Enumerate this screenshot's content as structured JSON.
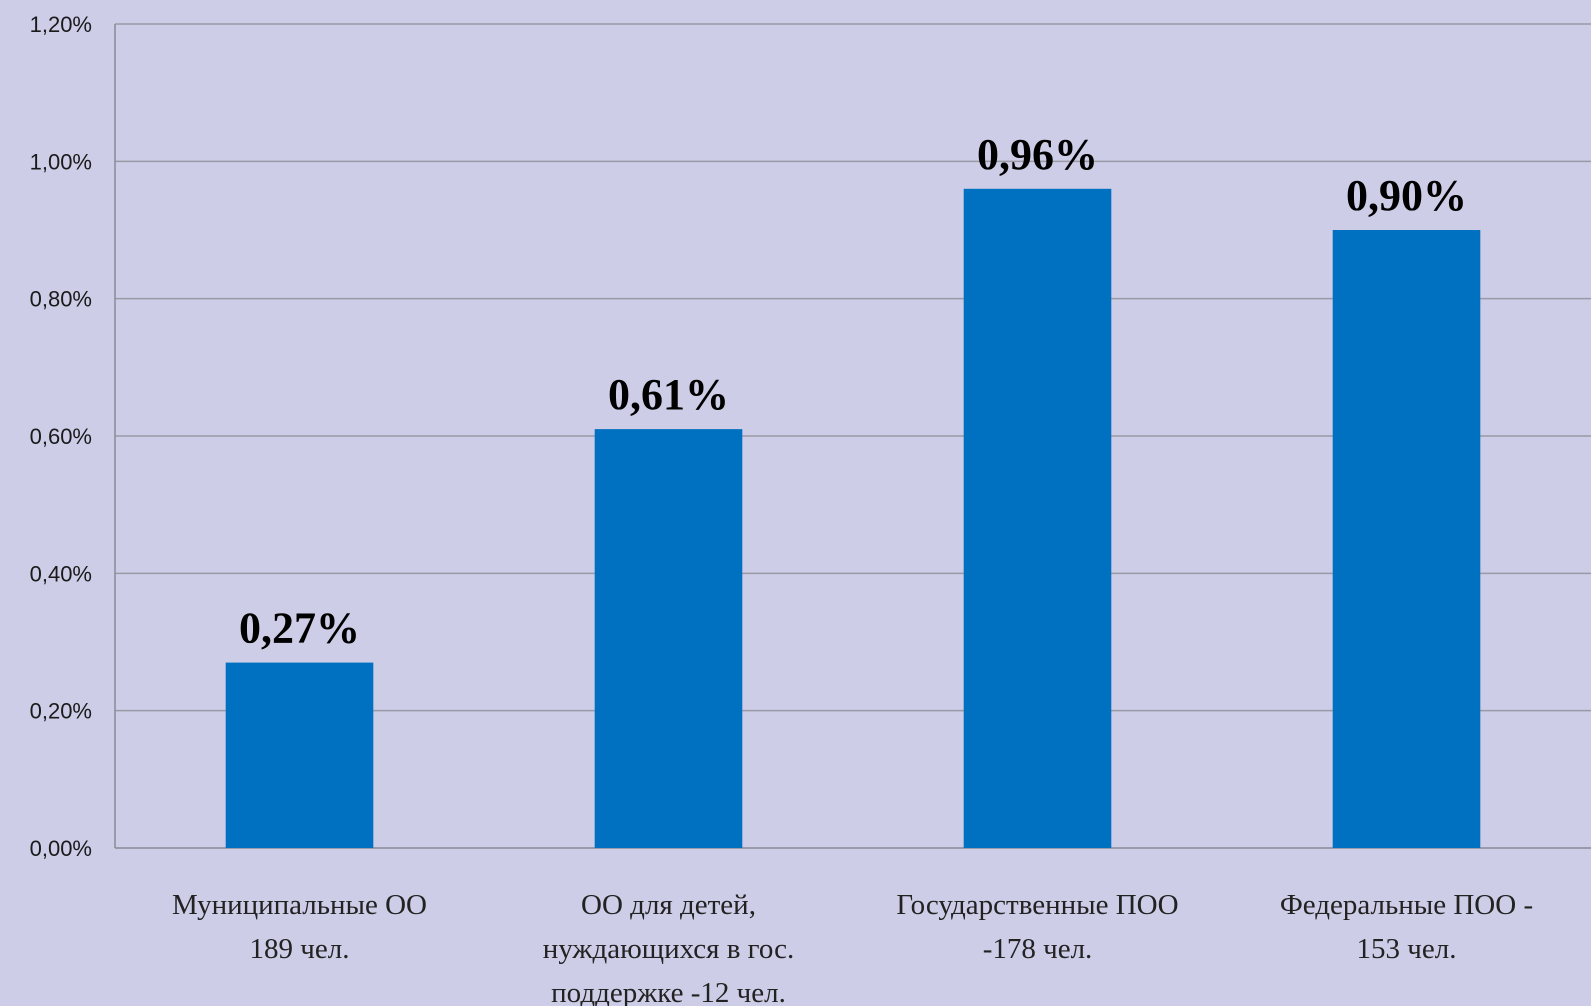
{
  "chart_data": {
    "type": "bar",
    "categories": [
      [
        "Муниципальные ОО",
        "189 чел."
      ],
      [
        "ОО для детей,",
        "нуждающихся в гос.",
        "поддержке -12 чел."
      ],
      [
        "Государственные ПОО",
        "-178 чел."
      ],
      [
        "Федеральные ПОО -",
        "153 чел."
      ]
    ],
    "values": [
      0.27,
      0.61,
      0.96,
      0.9
    ],
    "data_labels": [
      "0,27%",
      "0,61%",
      "0,96%",
      "0,90%"
    ],
    "ylim": [
      0,
      1.2
    ],
    "yticks": [
      0,
      0.2,
      0.4,
      0.6,
      0.8,
      1.0,
      1.2
    ],
    "ytick_labels": [
      "0,00%",
      "0,20%",
      "0,40%",
      "0,60%",
      "0,80%",
      "1,00%",
      "1,20%"
    ],
    "grid": true,
    "legend": "none",
    "colors": {
      "bar": "#0070c0",
      "background": "#cdcde8",
      "grid": "#9a9aa6",
      "axis": "#8a8a96"
    }
  }
}
